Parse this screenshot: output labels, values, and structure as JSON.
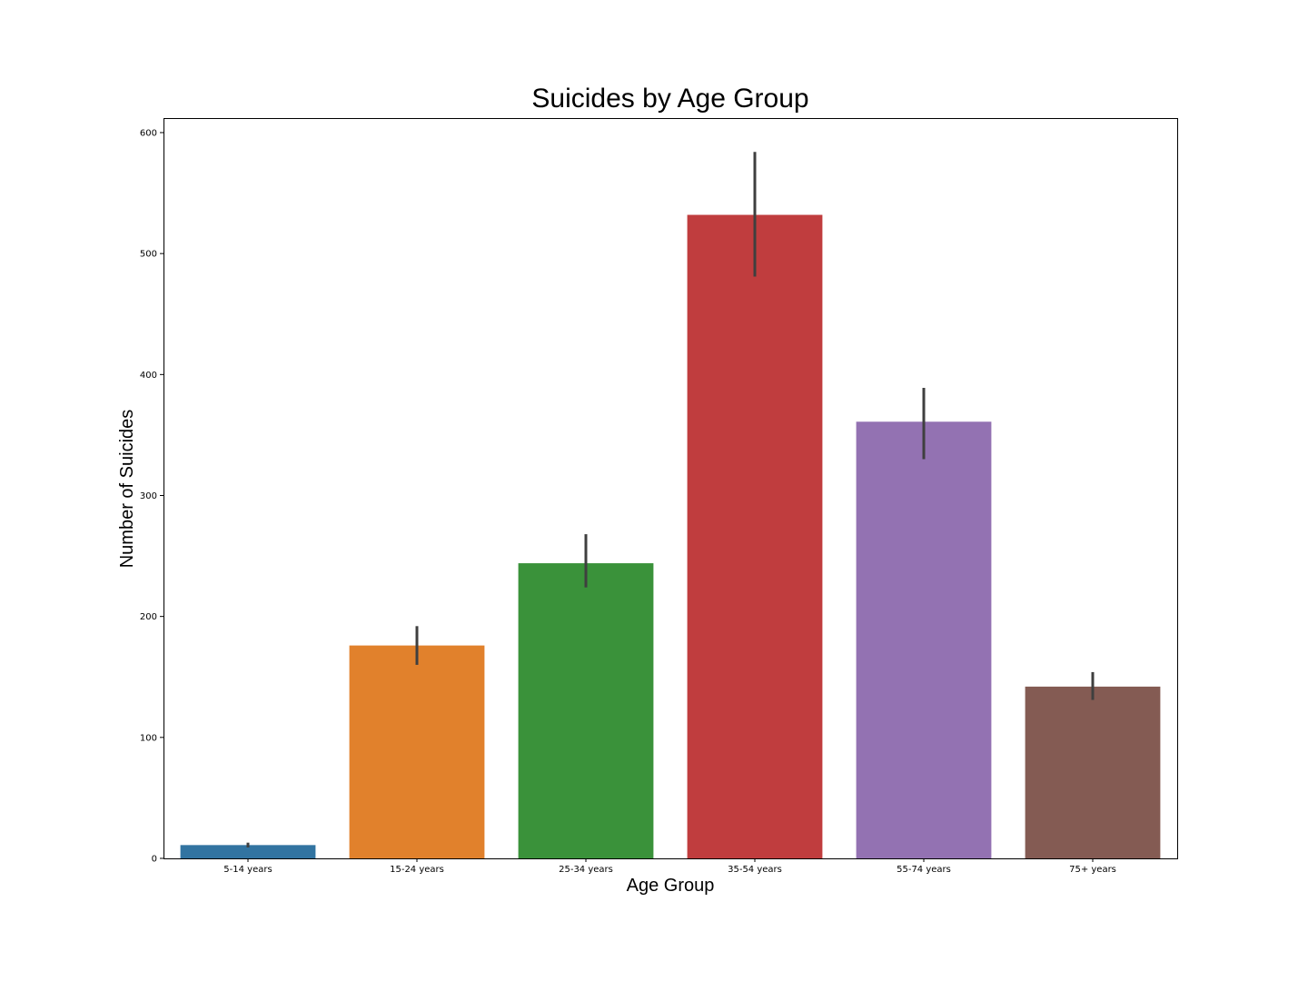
{
  "chart_data": {
    "type": "bar",
    "title": "Suicides by Age Group",
    "xlabel": "Age Group",
    "ylabel": "Number of Suicides",
    "ylim": [
      0,
      612
    ],
    "yticks": [
      0,
      100,
      200,
      300,
      400,
      500,
      600
    ],
    "grid": false,
    "categories": [
      "5-14 years",
      "15-24 years",
      "25-34 years",
      "35-54 years",
      "55-74 years",
      "75+ years"
    ],
    "values": [
      11,
      176,
      244,
      532,
      361,
      142
    ],
    "error_bars": [
      {
        "low": 9,
        "high": 13
      },
      {
        "low": 160,
        "high": 192
      },
      {
        "low": 224,
        "high": 268
      },
      {
        "low": 481,
        "high": 584
      },
      {
        "low": 330,
        "high": 389
      },
      {
        "low": 131,
        "high": 154
      }
    ],
    "colors": [
      "#3274a1",
      "#e1812c",
      "#3a923a",
      "#c03d3e",
      "#9372b2",
      "#845b53"
    ]
  }
}
